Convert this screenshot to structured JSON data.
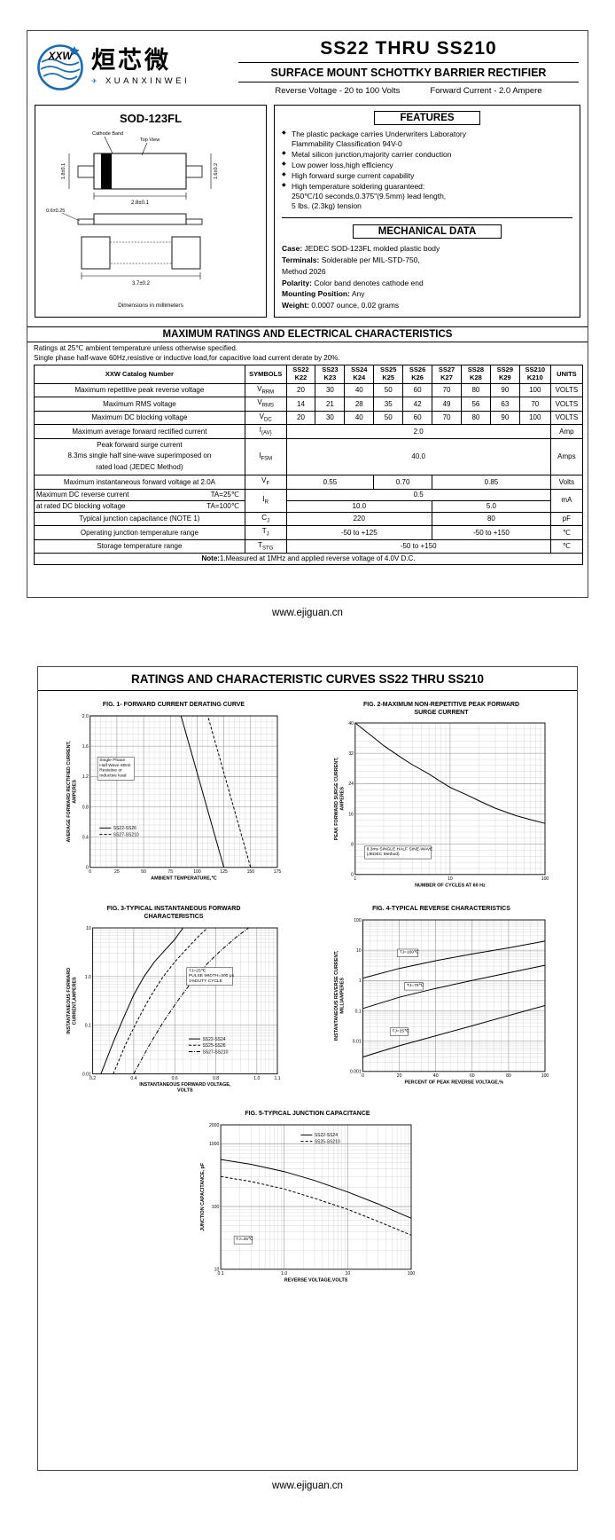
{
  "page1": {
    "logo": {
      "xxw": "XXW",
      "cn": "烜芯微",
      "en": "XUANXINWEI"
    },
    "title": "SS22 THRU SS210",
    "subtitle": "SURFACE MOUNT SCHOTTKY BARRIER RECTIFIER",
    "ratings_left": "Reverse Voltage - 20 to 100 Volts",
    "ratings_right": "Forward Current - 2.0 Ampere",
    "brand_color": "#1a6bb3",
    "package": {
      "name": "SOD-123FL",
      "cathode_label": "Cathode Band",
      "topview_label": "Top View",
      "dim_top": "2.8±0.1",
      "dim_left": "1.8±0.1",
      "dim_right": "1.6±0.2",
      "dim_lead": "0.6±0.25",
      "dim_total": "3.7±0.2",
      "dims_note": "Dimensions in millimeters"
    },
    "features": {
      "heading": "FEATURES",
      "bullet": "◆",
      "items": [
        "The plastic package carries Underwriters Laboratory\nFlammability Classification 94V-0",
        "Metal silicon junction,majority carrier conduction",
        "Low power loss,high efficiency",
        "High forward surge current capability",
        "High temperature soldering guaranteed:\n250℃/10 seconds,0.375\"(9.5mm) lead length,\n5 lbs. (2.3kg) tension"
      ]
    },
    "mech": {
      "heading": "MECHANICAL DATA",
      "rows": [
        {
          "label": "Case:",
          "text": "JEDEC SOD-123FL molded plastic body"
        },
        {
          "label": "Terminals:",
          "text": "Solderable per MIL-STD-750,\nMethod 2026"
        },
        {
          "label": "Polarity:",
          "text": "Color band denotes cathode end"
        },
        {
          "label": "Mounting Position:",
          "text": "Any"
        },
        {
          "label": "Weight:",
          "text": "0.0007 ounce, 0.02 grams"
        }
      ]
    },
    "table": {
      "title": "MAXIMUM RATINGS AND ELECTRICAL CHARACTERISTICS",
      "note1": "Ratings at 25℃ ambient temperature unless otherwise specified.",
      "note2": "Single phase half-wave 60Hz,resistive or inductive load,for capacitive load current derate by 20%.",
      "header": {
        "catalog": "XXW Catalog  Number",
        "symbols": "SYMBOLS",
        "units": "UNITS",
        "cols": [
          {
            "a": "SS22",
            "b": "K22"
          },
          {
            "a": "SS23",
            "b": "K23"
          },
          {
            "a": "SS24",
            "b": "K24"
          },
          {
            "a": "SS25",
            "b": "K25"
          },
          {
            "a": "SS26",
            "b": "K26"
          },
          {
            "a": "SS27",
            "b": "K27"
          },
          {
            "a": "SS28",
            "b": "K28"
          },
          {
            "a": "SS29",
            "b": "K29"
          },
          {
            "a": "SS210",
            "b": "K210"
          }
        ]
      },
      "rows": {
        "vrrm": {
          "label": "Maximum repetitive peak reverse voltage",
          "sym_b": "V",
          "sym_s": "RRM",
          "v": [
            "20",
            "30",
            "40",
            "50",
            "60",
            "70",
            "80",
            "90",
            "100"
          ],
          "unit": "VOLTS"
        },
        "vrms": {
          "label": "Maximum RMS voltage",
          "sym_b": "V",
          "sym_s": "RMS",
          "v": [
            "14",
            "21",
            "28",
            "35",
            "42",
            "49",
            "56",
            "63",
            "70"
          ],
          "unit": "VOLTS"
        },
        "vdc": {
          "label": "Maximum DC blocking voltage",
          "sym_b": "V",
          "sym_s": "DC",
          "v": [
            "20",
            "30",
            "40",
            "50",
            "60",
            "70",
            "80",
            "90",
            "100"
          ],
          "unit": "VOLTS"
        },
        "iav": {
          "label": "Maximum average forward rectified current",
          "sym_b": "I",
          "sym_s": "(AV)",
          "v": "2.0",
          "unit": "Amp"
        },
        "ifsm": {
          "label1": "Peak forward surge current",
          "label2": "8.3ms single half sine-wave superimposed on",
          "label3": "rated load (JEDEC Method)",
          "sym_b": "I",
          "sym_s": "FSM",
          "v": "40.0",
          "unit": "Amps"
        },
        "vf": {
          "label": "Maximum instantaneous forward voltage at 2.0A",
          "sym_b": "V",
          "sym_s": "F",
          "v1": "0.55",
          "v2": "0.70",
          "v3": "0.85",
          "unit": "Volts"
        },
        "ir": {
          "label1": "Maximum DC reverse current",
          "ta1": "TA=25℃",
          "label2": "at rated DC blocking voltage",
          "ta2": "TA=100℃",
          "sym_b": "I",
          "sym_s": "R",
          "v25": "0.5",
          "v100a": "10.0",
          "v100b": "5.0",
          "unit": "mA"
        },
        "cj": {
          "label": "Typical junction capacitance (NOTE 1)",
          "sym_b": "C",
          "sym_s": "J",
          "v1": "220",
          "v2": "80",
          "unit": "pF"
        },
        "tj": {
          "label": "Operating junction temperature range",
          "sym_b": "T",
          "sym_s": "J",
          "v1": "-50 to +125",
          "v2": "-50 to +150",
          "unit": "℃"
        },
        "tstg": {
          "label": "Storage temperature range",
          "sym_b": "T",
          "sym_s": "STG",
          "v": "-50 to +150",
          "unit": "℃"
        }
      },
      "footnote_label": "Note:",
      "footnote_text": "1.Measured at 1MHz and applied reverse voltage of 4.0V D.C."
    },
    "footer": "www.ejiguan.cn"
  },
  "page2": {
    "heading": "RATINGS AND CHARACTERISTIC CURVES SS22 THRU SS210",
    "footer": "www.ejiguan.cn"
  },
  "chart_data": [
    {
      "id": "fig1",
      "type": "line",
      "title": "FIG. 1- FORWARD CURRENT DERATING CURVE",
      "xlabel": "AMBIENT TEMPERATURE,℃",
      "ylabel": "AVERAGE FORWARD RECTIFIED CURRENT,\nAMPERES",
      "xscale": "linear",
      "yscale": "linear",
      "xlim": [
        0,
        175
      ],
      "ylim": [
        0,
        2
      ],
      "xticks": [
        0,
        25,
        50,
        75,
        100,
        125,
        150,
        175
      ],
      "xtick_labels": [
        "0",
        "25",
        "50",
        "75",
        "100",
        "125",
        "150",
        "175"
      ],
      "yticks": [
        0,
        0.4,
        0.8,
        1.2,
        1.6,
        2.0
      ],
      "ytick_labels": [
        "0",
        "0.4",
        "0.8",
        "1.2",
        "1.6",
        "2.0"
      ],
      "grid": true,
      "legend_position": "lower-left",
      "series": [
        {
          "name": "SS22-SS26",
          "style": "solid",
          "points": [
            [
              0,
              2
            ],
            [
              85,
              2
            ],
            [
              125,
              0
            ]
          ]
        },
        {
          "name": "SS27-SS210",
          "style": "dashed",
          "points": [
            [
              0,
              2
            ],
            [
              110,
              2
            ],
            [
              150,
              0
            ]
          ]
        }
      ],
      "legend": {
        "x": 0.05,
        "y": 0.74
      },
      "annotations": [
        {
          "x": 0.05,
          "y": 0.3,
          "boxed": true,
          "text": "Single Phase\nHalf Wave 60Hz\nResistive or\nInductive load"
        }
      ]
    },
    {
      "id": "fig2",
      "type": "line",
      "title": "FIG. 2-MAXIMUM NON-REPETITIVE PEAK FORWARD\nSURGE CURRENT",
      "xlabel": "NUMBER OF CYCLES AT 60 Hz",
      "ylabel": "PEAK  FORWARD SURGE CURRENT,\nAMPERES",
      "xscale": "log",
      "yscale": "linear",
      "xlim": [
        1,
        100
      ],
      "ylim": [
        0,
        40
      ],
      "xticks": [
        1,
        10,
        100
      ],
      "xtick_labels": [
        "1",
        "10",
        "100"
      ],
      "yticks": [
        0,
        8,
        16,
        24,
        32,
        40
      ],
      "ytick_labels": [
        "0",
        "8",
        "16",
        "24",
        "32",
        "40"
      ],
      "grid": true,
      "series": [
        {
          "name": "",
          "style": "solid",
          "points": [
            [
              1,
              40
            ],
            [
              1.5,
              36.5
            ],
            [
              2,
              34
            ],
            [
              3,
              31
            ],
            [
              4,
              29
            ],
            [
              6,
              26.5
            ],
            [
              8,
              24.5
            ],
            [
              10,
              23
            ],
            [
              15,
              21
            ],
            [
              20,
              19.5
            ],
            [
              30,
              17.5
            ],
            [
              50,
              15.5
            ],
            [
              70,
              14.5
            ],
            [
              100,
              13.5
            ]
          ]
        }
      ],
      "annotations": [
        {
          "x": 0.06,
          "y": 0.84,
          "boxed": true,
          "text": "8.3ms SINGLE HALF SINE-WAVE\n(JEDEC Method)"
        }
      ]
    },
    {
      "id": "fig3",
      "type": "line",
      "title": "FIG. 3-TYPICAL INSTANTANEOUS FORWARD\nCHARACTERISTICS",
      "xlabel": "INSTANTANEOUS FORWARD VOLTAGE,\nVOLTS",
      "ylabel": "INSTANTANEOUS FORWARD\nCURRENT,AMPERES",
      "xscale": "linear",
      "yscale": "log",
      "xlim": [
        0.2,
        1.1
      ],
      "ylim": [
        0.01,
        10
      ],
      "xticks": [
        0.2,
        0.4,
        0.6,
        0.8,
        1.0,
        1.1
      ],
      "xtick_labels": [
        "0.2",
        "0.4",
        "0.6",
        "0.8",
        "1.0",
        "1.1"
      ],
      "yticks": [
        0.01,
        0.1,
        1,
        10
      ],
      "ytick_labels": [
        "0.01",
        "0.1",
        "1.0",
        "10"
      ],
      "grid": true,
      "legend_position": "lower-right",
      "series": [
        {
          "name": "SS22-SS24",
          "style": "solid",
          "points": [
            [
              0.24,
              0.01
            ],
            [
              0.3,
              0.045
            ],
            [
              0.35,
              0.14
            ],
            [
              0.4,
              0.42
            ],
            [
              0.45,
              1.0
            ],
            [
              0.5,
              2.0
            ],
            [
              0.55,
              3.4
            ],
            [
              0.6,
              5.8
            ],
            [
              0.64,
              10
            ]
          ]
        },
        {
          "name": "SS25-SS26",
          "style": "dashed",
          "points": [
            [
              0.3,
              0.01
            ],
            [
              0.36,
              0.04
            ],
            [
              0.42,
              0.13
            ],
            [
              0.48,
              0.38
            ],
            [
              0.54,
              0.95
            ],
            [
              0.6,
              2.0
            ],
            [
              0.66,
              3.8
            ],
            [
              0.72,
              7
            ],
            [
              0.76,
              10
            ]
          ]
        },
        {
          "name": "SS27-SS210",
          "style": "dashdot",
          "points": [
            [
              0.4,
              0.01
            ],
            [
              0.47,
              0.035
            ],
            [
              0.54,
              0.11
            ],
            [
              0.61,
              0.3
            ],
            [
              0.68,
              0.75
            ],
            [
              0.75,
              1.7
            ],
            [
              0.82,
              3.3
            ],
            [
              0.9,
              6.5
            ],
            [
              0.96,
              10
            ]
          ]
        }
      ],
      "legend": {
        "x": 0.52,
        "y": 0.76
      },
      "annotations": [
        {
          "x": 0.52,
          "y": 0.3,
          "boxed": true,
          "text": "TJ=25℃\nPULSE WIDTH=300 μs\n1%DUTY CYCLE"
        }
      ]
    },
    {
      "id": "fig4",
      "type": "line",
      "title": "FIG. 4-TYPICAL REVERSE CHARACTERISTICS",
      "xlabel": "PERCENT OF PEAK REVERSE VOLTAGE,%",
      "ylabel": "INSTANTANEOUS REVERSE CURRENT,\nMILLIAMPERES",
      "xscale": "linear",
      "yscale": "log",
      "xlim": [
        0,
        100
      ],
      "ylim": [
        0.001,
        100
      ],
      "xticks": [
        0,
        20,
        40,
        60,
        80,
        100
      ],
      "xtick_labels": [
        "0",
        "20",
        "40",
        "60",
        "80",
        "100"
      ],
      "yticks": [
        0.001,
        0.01,
        0.1,
        1,
        10,
        100
      ],
      "ytick_labels": [
        "0.001",
        "0.01",
        "0.1",
        "1",
        "10",
        "100"
      ],
      "grid": true,
      "series": [
        {
          "name": "TJ=100℃",
          "style": "solid",
          "points": [
            [
              0,
              1.2
            ],
            [
              20,
              2.5
            ],
            [
              40,
              4.5
            ],
            [
              60,
              7.5
            ],
            [
              80,
              12
            ],
            [
              100,
              20
            ]
          ]
        },
        {
          "name": "TJ=75℃",
          "style": "solid",
          "points": [
            [
              0,
              0.12
            ],
            [
              20,
              0.28
            ],
            [
              40,
              0.55
            ],
            [
              60,
              1.0
            ],
            [
              80,
              1.8
            ],
            [
              100,
              3.2
            ]
          ]
        },
        {
          "name": "TJ=25℃",
          "style": "solid",
          "points": [
            [
              0,
              0.003
            ],
            [
              20,
              0.007
            ],
            [
              40,
              0.015
            ],
            [
              60,
              0.032
            ],
            [
              80,
              0.07
            ],
            [
              100,
              0.15
            ]
          ]
        }
      ],
      "annotations": [
        {
          "x": 0.2,
          "y": 0.22,
          "boxed": true,
          "text": "TJ=100℃"
        },
        {
          "x": 0.24,
          "y": 0.44,
          "boxed": true,
          "text": "TJ=75℃"
        },
        {
          "x": 0.16,
          "y": 0.74,
          "boxed": true,
          "text": "TJ=25℃"
        }
      ]
    },
    {
      "id": "fig5",
      "type": "line",
      "h": 190,
      "title": "FIG. 5-TYPICAL JUNCTION CAPACITANCE",
      "xlabel": "REVERSE VOLTAGE,VOLTS",
      "ylabel": "JUNCTION CAPACITANCE, pF",
      "xscale": "log",
      "yscale": "log",
      "xlim": [
        0.1,
        100
      ],
      "ylim": [
        10,
        2000
      ],
      "xticks": [
        0.1,
        1,
        10,
        100
      ],
      "xtick_labels": [
        "0.1",
        "1.0",
        "10",
        "100"
      ],
      "yticks": [
        10,
        100,
        1000,
        2000
      ],
      "ytick_labels": [
        "10",
        "100",
        "1000",
        "2000"
      ],
      "grid": true,
      "legend_position": "upper-right",
      "series": [
        {
          "name": "SS22-SS24",
          "style": "solid",
          "points": [
            [
              0.1,
              560
            ],
            [
              0.3,
              470
            ],
            [
              1,
              360
            ],
            [
              3,
              260
            ],
            [
              10,
              170
            ],
            [
              30,
              110
            ],
            [
              100,
              65
            ]
          ]
        },
        {
          "name": "SS25-SS210",
          "style": "dashed",
          "points": [
            [
              0.1,
              300
            ],
            [
              0.3,
              250
            ],
            [
              1,
              190
            ],
            [
              3,
              135
            ],
            [
              10,
              90
            ],
            [
              30,
              58
            ],
            [
              100,
              35
            ]
          ]
        }
      ],
      "legend": {
        "x": 0.42,
        "y": 0.07
      },
      "annotations": [
        {
          "x": 0.08,
          "y": 0.8,
          "boxed": true,
          "text": "TJ=25℃"
        }
      ]
    }
  ]
}
